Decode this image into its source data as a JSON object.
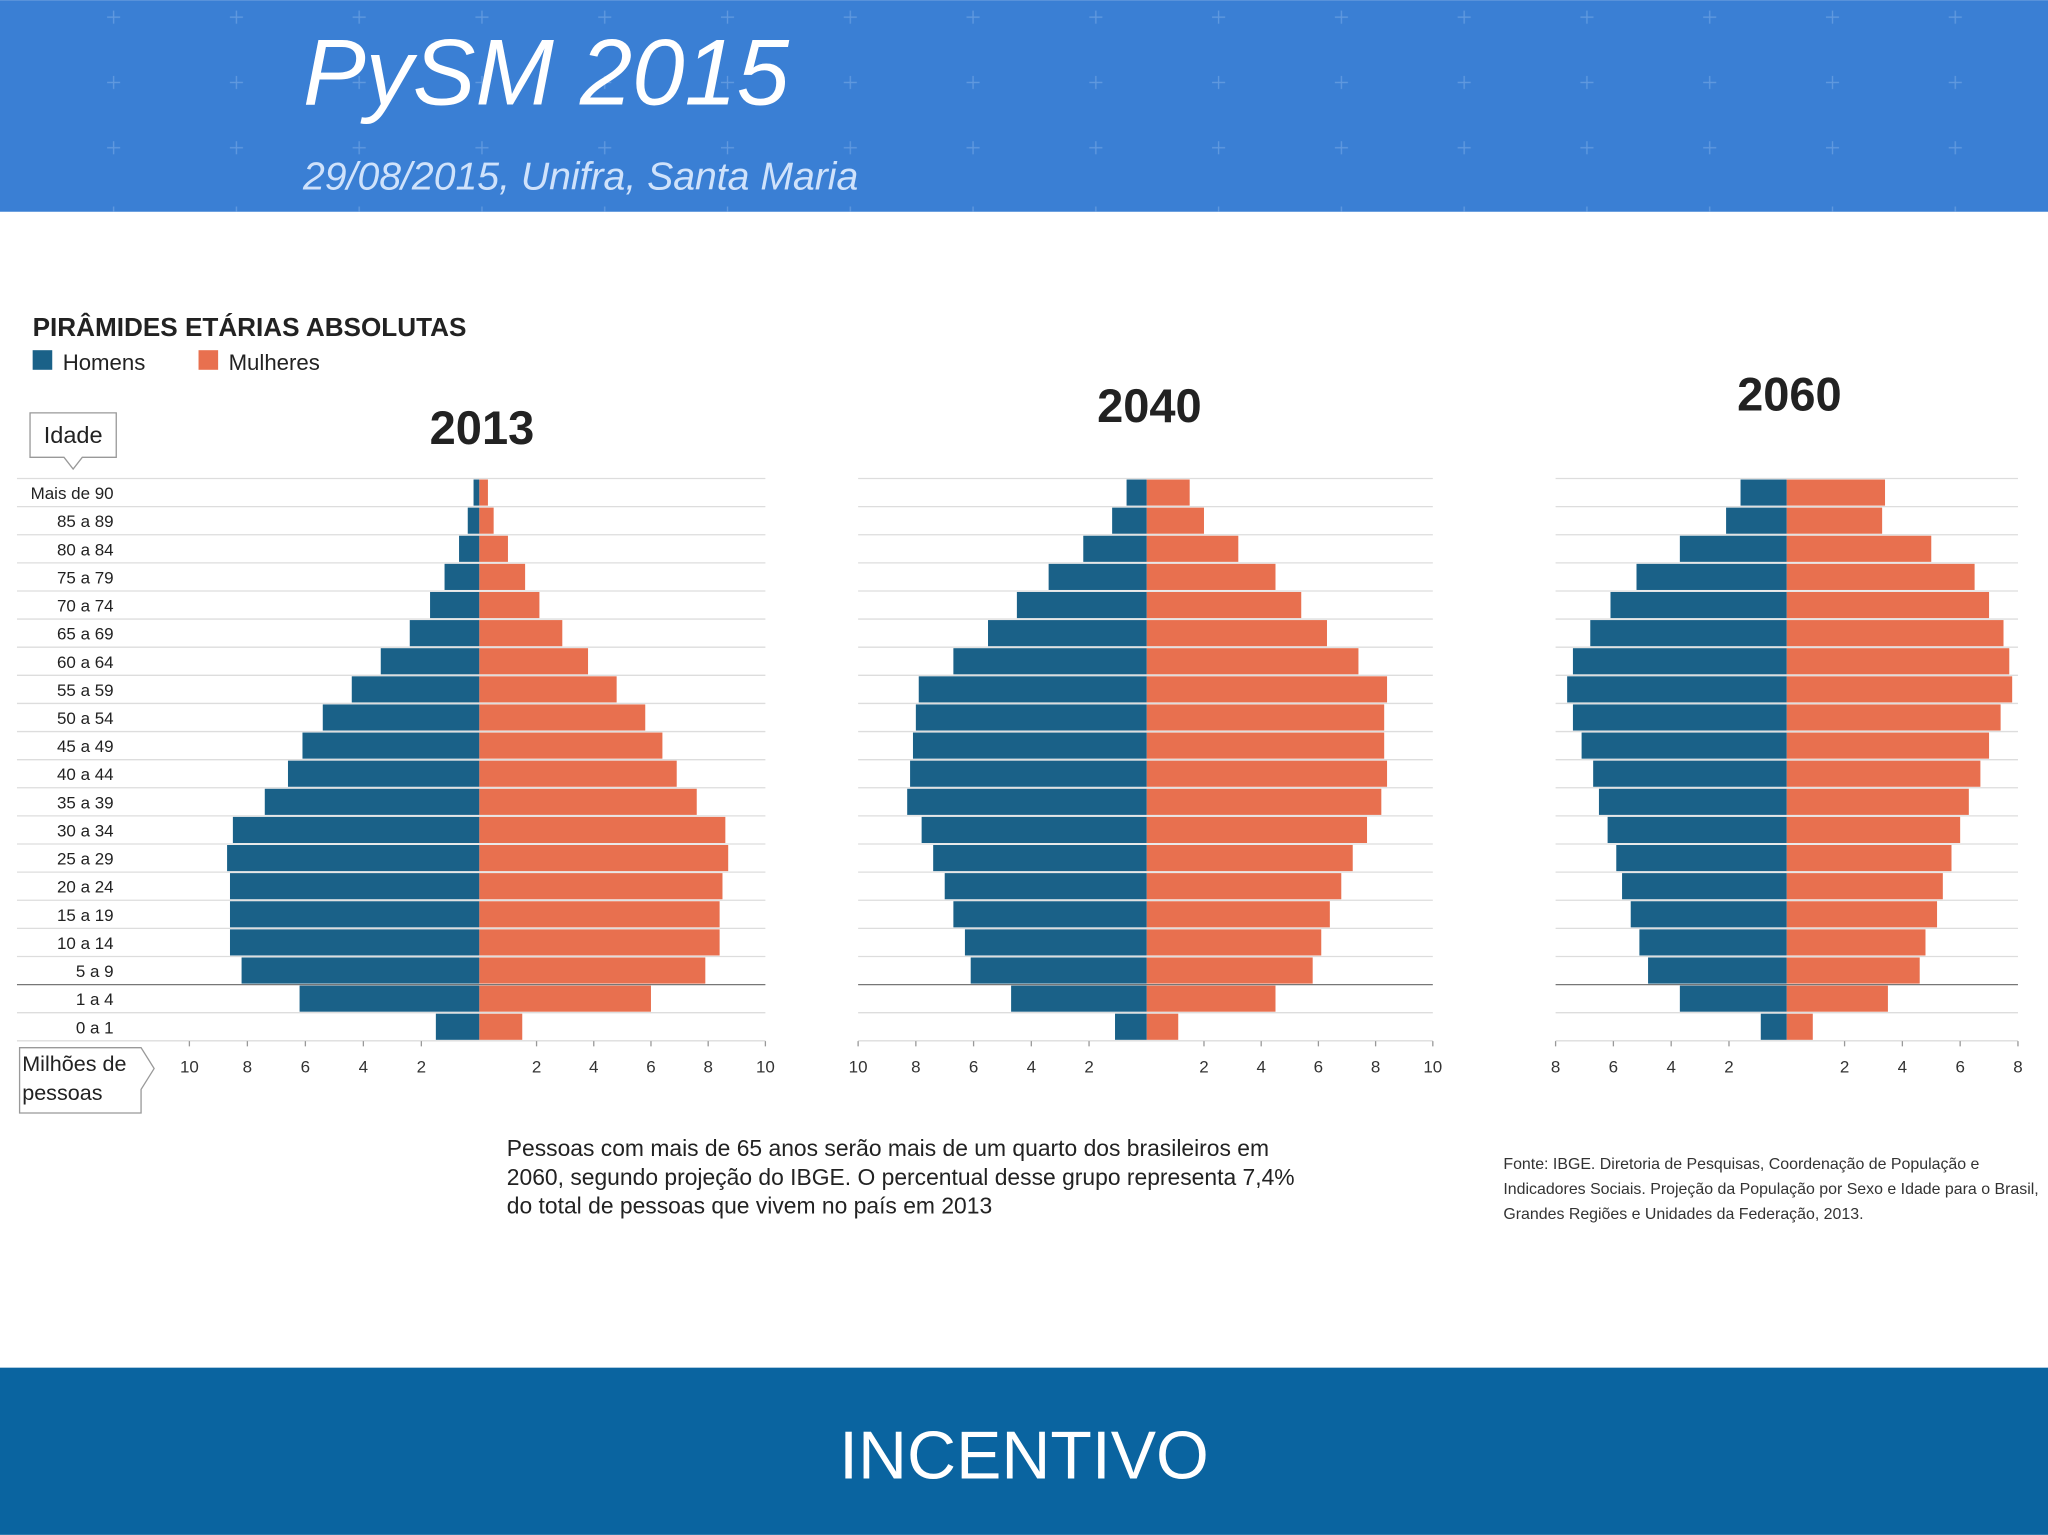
{
  "header": {
    "title": "PySM 2015",
    "subtitle": "29/08/2015, Unifra, Santa Maria"
  },
  "figure_title": "PIRÂMIDES ETÁRIAS ABSOLUTAS",
  "caption": "Pessoas com mais de 65 anos serão mais de um quarto dos brasileiros em 2060, segundo projeção do IBGE. O percentual desse grupo representa 7,4% do total de pessoas que vivem no país em 2013",
  "source": "Fonte: IBGE. Diretoria de Pesquisas, Coordenação de População e Indicadores Sociais. Projeção da População por Sexo e Idade para o Brasil, Grandes Regiões e Unidades da Federação, 2013.",
  "footer": "INCENTIVO",
  "chart_data": [
    {
      "type": "pyramid",
      "title": "2013",
      "ylabel": "Idade",
      "xlabel": "Milhões de pessoas",
      "categories": [
        "Mais de 90",
        "85 a 89",
        "80 a 84",
        "75 a 79",
        "70 a 74",
        "65 a 69",
        "60 a 64",
        "55 a 59",
        "50 a 54",
        "45 a 49",
        "40 a 44",
        "35 a 39",
        "30 a 34",
        "25 a 29",
        "20 a 24",
        "15 a 19",
        "10 a 14",
        "5 a 9",
        "1 a 4",
        "0 a 1"
      ],
      "xlim": [
        0,
        10
      ],
      "xticks": [
        2,
        4,
        6,
        8,
        10
      ],
      "series": [
        {
          "name": "Homens",
          "color": "#1a6188",
          "values": [
            0.2,
            0.4,
            0.7,
            1.2,
            1.7,
            2.4,
            3.4,
            4.4,
            5.4,
            6.1,
            6.6,
            7.4,
            8.5,
            8.7,
            8.6,
            8.6,
            8.6,
            8.2,
            6.2,
            1.5
          ]
        },
        {
          "name": "Mulheres",
          "color": "#e8704f",
          "values": [
            0.3,
            0.5,
            1.0,
            1.6,
            2.1,
            2.9,
            3.8,
            4.8,
            5.8,
            6.4,
            6.9,
            7.6,
            8.6,
            8.7,
            8.5,
            8.4,
            8.4,
            7.9,
            6.0,
            1.5
          ]
        }
      ]
    },
    {
      "type": "pyramid",
      "title": "2040",
      "xlim": [
        0,
        10
      ],
      "xticks": [
        2,
        4,
        6,
        8,
        10
      ],
      "series": [
        {
          "color": "#1a6188",
          "values": [
            0.7,
            1.2,
            2.2,
            3.4,
            4.5,
            5.5,
            6.7,
            7.9,
            8.0,
            8.1,
            8.2,
            8.3,
            7.8,
            7.4,
            7.0,
            6.7,
            6.3,
            6.1,
            4.7,
            1.1
          ]
        },
        {
          "color": "#e8704f",
          "values": [
            1.5,
            2.0,
            3.2,
            4.5,
            5.4,
            6.3,
            7.4,
            8.4,
            8.3,
            8.3,
            8.4,
            8.2,
            7.7,
            7.2,
            6.8,
            6.4,
            6.1,
            5.8,
            4.5,
            1.1
          ]
        }
      ]
    },
    {
      "type": "pyramid",
      "title": "2060",
      "xlim": [
        0,
        8
      ],
      "xticks": [
        2,
        4,
        6,
        8
      ],
      "series": [
        {
          "color": "#1a6188",
          "values": [
            1.6,
            2.1,
            3.7,
            5.2,
            6.1,
            6.8,
            7.4,
            7.6,
            7.4,
            7.1,
            6.7,
            6.5,
            6.2,
            5.9,
            5.7,
            5.4,
            5.1,
            4.8,
            3.7,
            0.9
          ]
        },
        {
          "color": "#e8704f",
          "values": [
            3.4,
            3.3,
            5.0,
            6.5,
            7.0,
            7.5,
            7.7,
            7.8,
            7.4,
            7.0,
            6.7,
            6.3,
            6.0,
            5.7,
            5.4,
            5.2,
            4.8,
            4.6,
            3.5,
            0.9
          ]
        }
      ]
    }
  ]
}
